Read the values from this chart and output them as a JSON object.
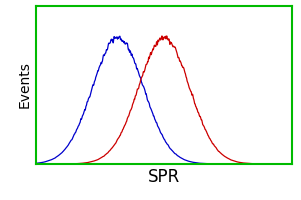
{
  "title": "",
  "xlabel": "SPR",
  "ylabel": "Events",
  "background_color": "#ffffff",
  "green_color": "#00bb00",
  "blue_mean": 0.32,
  "blue_std": 0.1,
  "red_mean": 0.5,
  "red_std": 0.1,
  "blue_color": "#0000cc",
  "red_color": "#cc0000",
  "x_min": 0.0,
  "x_max": 1.0,
  "noise_seed": 7,
  "xlabel_fontsize": 12,
  "ylabel_fontsize": 10,
  "spine_linewidth": 1.5,
  "curve_linewidth": 0.9
}
